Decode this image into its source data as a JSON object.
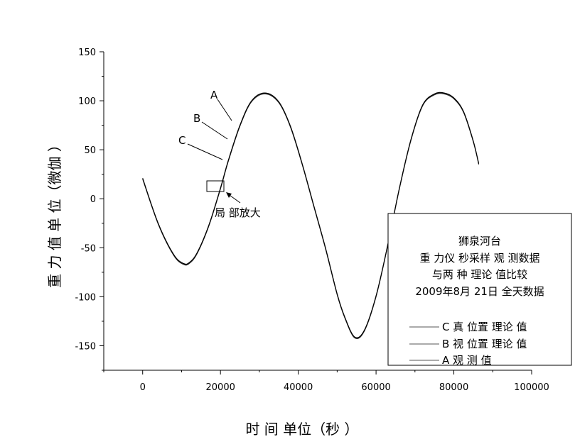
{
  "chart_data": {
    "type": "line",
    "title": "",
    "xlabel": "时 间 单位（秒 ）",
    "ylabel": "重 力 值 单 位（微伽 ）",
    "xlim": [
      -10000,
      100000
    ],
    "ylim": [
      -175,
      150
    ],
    "xticks": [
      0,
      20000,
      40000,
      60000,
      80000,
      100000
    ],
    "yticks": [
      150,
      100,
      50,
      0,
      -50,
      -100,
      -150
    ],
    "xtick_labels": [
      "0",
      "20000",
      "40000",
      "60000",
      "80000",
      "100000"
    ],
    "ytick_labels": [
      "150",
      "100",
      "50",
      "0",
      "-50",
      "-100",
      "-150"
    ],
    "grid": false,
    "series": [
      {
        "name": "C 真  位置 理论 值",
        "x": [
          0,
          4000,
          8000,
          10500,
          12000,
          14000,
          17000,
          20000,
          22000,
          25000,
          28000,
          31500,
          35000,
          38000,
          41000,
          44000,
          47000,
          50000,
          52000,
          54500,
          57000,
          60000,
          63000,
          66000,
          69000,
          72000,
          75000,
          77500,
          80000,
          82500,
          85000,
          86400
        ],
        "y": [
          20,
          -26,
          -58,
          -67,
          -66,
          -56,
          -28,
          10,
          38,
          74,
          99,
          107,
          98,
          73,
          35,
          -8,
          -51,
          -98,
          -122,
          -142,
          -135,
          -100,
          -48,
          10,
          60,
          95,
          106,
          107,
          102,
          88,
          58,
          35
        ]
      },
      {
        "name": "B 视 位置 理论 值",
        "x": [
          0,
          4000,
          8000,
          10500,
          12000,
          14000,
          17000,
          20000,
          22000,
          25000,
          28000,
          31500,
          35000,
          38000,
          41000,
          44000,
          47000,
          50000,
          52000,
          54500,
          57000,
          60000,
          63000,
          66000,
          69000,
          72000,
          75000,
          77500,
          80000,
          82500,
          85000,
          86400
        ],
        "y": [
          20.5,
          -25.5,
          -57.5,
          -66.5,
          -65.5,
          -55.5,
          -27.5,
          10.5,
          38.5,
          74.5,
          99.5,
          107.5,
          98.5,
          73.5,
          35.5,
          -7.5,
          -50.5,
          -97.5,
          -121.5,
          -141.5,
          -134.5,
          -99.5,
          -47.5,
          10.5,
          60.5,
          95.5,
          106.5,
          107.5,
          102.5,
          88.5,
          58.5,
          35.5
        ]
      },
      {
        "name": "A 观 测  值",
        "x": [
          0,
          4000,
          8000,
          10500,
          12000,
          14000,
          17000,
          20000,
          22000,
          25000,
          28000,
          31500,
          35000,
          38000,
          41000,
          44000,
          47000,
          50000,
          52000,
          54500,
          57000,
          60000,
          63000,
          66000,
          69000,
          72000,
          75000,
          77500,
          80000,
          82500,
          85000,
          86400
        ],
        "y": [
          21,
          -25,
          -57,
          -66,
          -65,
          -55,
          -27,
          11,
          39,
          75,
          100,
          108,
          99,
          74,
          36,
          -7,
          -50,
          -97,
          -121,
          -141,
          -134,
          -99,
          -47,
          11,
          61,
          96,
          107,
          108,
          103,
          89,
          59,
          36
        ]
      }
    ],
    "legend": {
      "placement": "bottom-right",
      "title_lines": [
        "狮泉河台",
        "重 力仪 秒采样 观 测数据",
        "与两 种 理论 值比较",
        "2009年8月 21日 全天数据"
      ],
      "entries": [
        "C 真  位置 理论 值",
        "B 视 位置 理论 值",
        "A 观 测  值"
      ]
    },
    "annotations": {
      "curve_labels": [
        "A",
        "B",
        "C"
      ],
      "zoom_label": "局 部放大"
    }
  }
}
